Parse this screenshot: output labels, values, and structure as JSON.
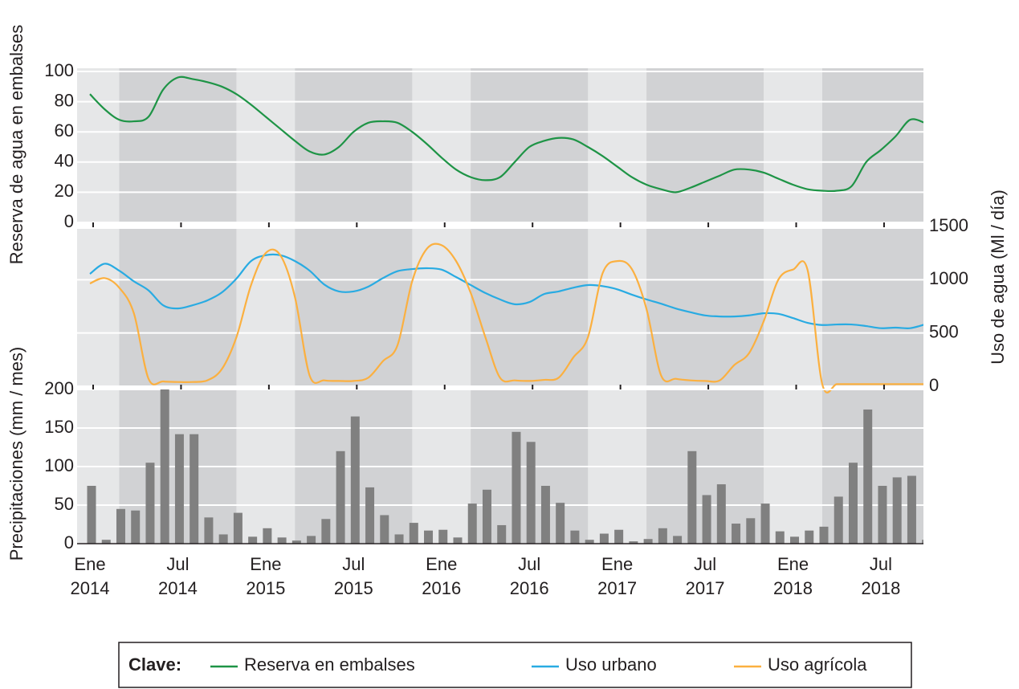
{
  "legend": {
    "title": "Clave:"
  },
  "chart_data": [
    {
      "type": "line",
      "ylabel": "Reserva de agua en embalses",
      "series": [
        {
          "name": "Reserva en embalses",
          "color": "#1e9446",
          "values": [
            85,
            75,
            68,
            67,
            70,
            88,
            96,
            95,
            93,
            90,
            85,
            78,
            70,
            62,
            54,
            47,
            45,
            50,
            60,
            66,
            67,
            66,
            60,
            52,
            43,
            35,
            30,
            28,
            30,
            40,
            50,
            54,
            56,
            55,
            50,
            44,
            37,
            30,
            25,
            22,
            20,
            23,
            27,
            31,
            35,
            35,
            33,
            29,
            25,
            22,
            21,
            21,
            24,
            40,
            48,
            57,
            68,
            66
          ]
        }
      ],
      "ylim": [
        0,
        100
      ],
      "yticks": [
        0,
        20,
        40,
        60,
        80,
        100
      ],
      "grid": true
    },
    {
      "type": "line",
      "ylabel": "Uso de agua (Ml / día)",
      "series": [
        {
          "name": "Uso urbano",
          "color": "#29abe2",
          "axis": "y2",
          "values": [
            1055,
            1150,
            1085,
            985,
            900,
            760,
            730,
            760,
            805,
            880,
            1010,
            1175,
            1230,
            1230,
            1175,
            1085,
            955,
            890,
            890,
            935,
            1015,
            1080,
            1100,
            1108,
            1095,
            1025,
            950,
            875,
            815,
            770,
            790,
            865,
            890,
            925,
            950,
            940,
            910,
            860,
            815,
            775,
            730,
            695,
            665,
            655,
            655,
            665,
            685,
            680,
            640,
            595,
            575,
            580,
            580,
            565,
            545,
            550,
            545,
            580
          ]
        },
        {
          "name": "Uso agrícola",
          "color": "#fbb040",
          "axis": "y2",
          "values": [
            965,
            1015,
            925,
            685,
            70,
            45,
            40,
            40,
            55,
            160,
            460,
            950,
            1250,
            1230,
            835,
            100,
            55,
            50,
            50,
            80,
            235,
            385,
            985,
            1290,
            1325,
            1175,
            875,
            460,
            80,
            55,
            50,
            60,
            80,
            270,
            460,
            1060,
            1175,
            1100,
            725,
            100,
            70,
            55,
            50,
            55,
            200,
            310,
            610,
            1000,
            1095,
            1090,
            20,
            20,
            20,
            20,
            20,
            20,
            20,
            20
          ]
        }
      ],
      "y2lim": [
        0,
        1500
      ],
      "y2ticks": [
        0,
        500,
        1000,
        1500
      ],
      "grid": true
    },
    {
      "type": "bar",
      "ylabel": "Precipitaciones (mm / mes)",
      "categories": [
        "Ene 2014",
        null,
        null,
        null,
        null,
        null,
        "Jul 2014",
        null,
        null,
        null,
        null,
        null,
        "Ene 2015",
        null,
        null,
        null,
        null,
        null,
        "Jul 2015",
        null,
        null,
        null,
        null,
        null,
        "Ene 2016",
        null,
        null,
        null,
        null,
        null,
        "Jul 2016",
        null,
        null,
        null,
        null,
        null,
        "Ene 2017",
        null,
        null,
        null,
        null,
        null,
        "Jul 2017",
        null,
        null,
        null,
        null,
        null,
        "Ene 2018",
        null,
        null,
        null,
        null,
        null,
        "Jul 2018",
        null,
        null,
        null
      ],
      "values": [
        75,
        5,
        45,
        43,
        105,
        200,
        142,
        142,
        34,
        12,
        40,
        9,
        20,
        8,
        4,
        10,
        32,
        120,
        165,
        73,
        37,
        12,
        27,
        17,
        18,
        8,
        52,
        70,
        24,
        145,
        132,
        75,
        53,
        17,
        5,
        13,
        18,
        3,
        6,
        20,
        10,
        120,
        63,
        77,
        26,
        33,
        52,
        16,
        9,
        17,
        22,
        61,
        105,
        174,
        75,
        86,
        88,
        5
      ],
      "color": "#808080",
      "ylim": [
        0,
        200
      ],
      "yticks": [
        0,
        50,
        100,
        150,
        200
      ],
      "grid": true
    }
  ]
}
